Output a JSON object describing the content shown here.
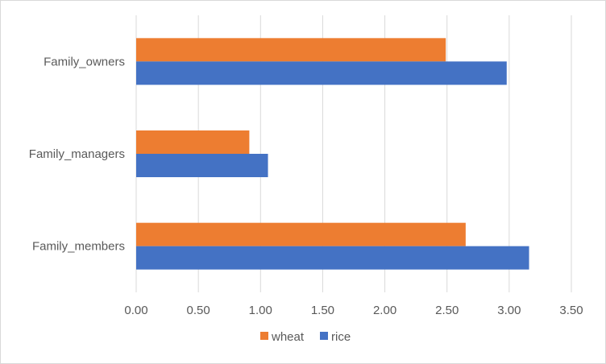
{
  "chart_data": {
    "type": "bar",
    "orientation": "horizontal",
    "categories": [
      "Family_owners",
      "Family_managers",
      "Family_members"
    ],
    "series": [
      {
        "name": "wheat",
        "color": "#ED7D31",
        "values": [
          2.49,
          0.91,
          2.65
        ]
      },
      {
        "name": "rice",
        "color": "#4472C4",
        "values": [
          2.98,
          1.06,
          3.16
        ]
      }
    ],
    "xlim": [
      0,
      3.5
    ],
    "x_ticks": [
      "0.00",
      "0.50",
      "1.00",
      "1.50",
      "2.00",
      "2.50",
      "3.00",
      "3.50"
    ],
    "grid": "vertical",
    "legend_position": "bottom"
  }
}
